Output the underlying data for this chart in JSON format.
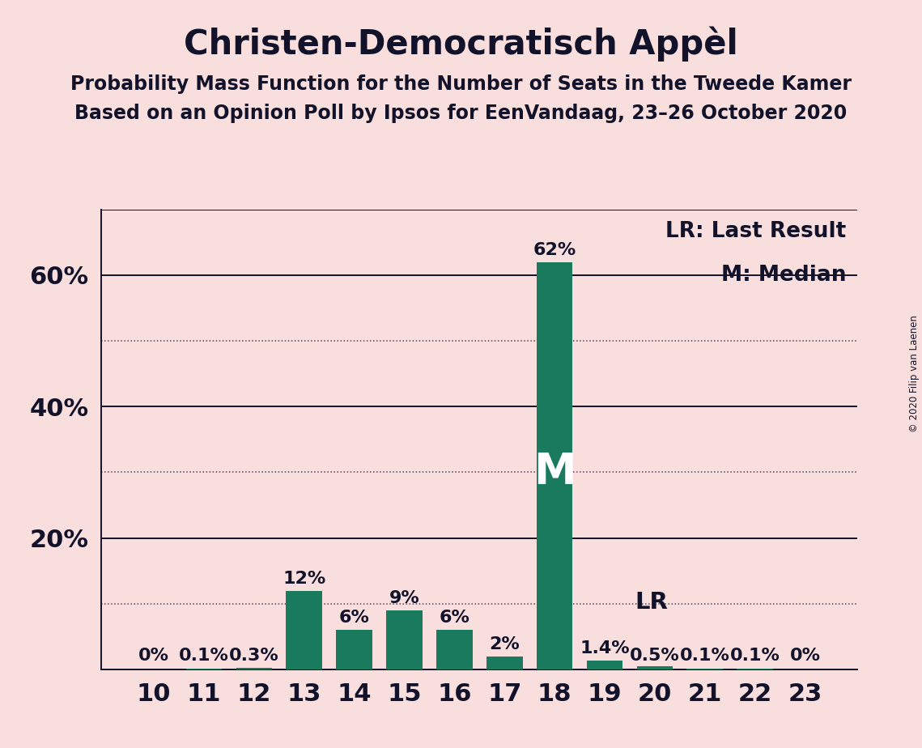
{
  "title": "Christen-Democratisch Appèl",
  "subtitle1": "Probability Mass Function for the Number of Seats in the Tweede Kamer",
  "subtitle2": "Based on an Opinion Poll by Ipsos for EenVandaag, 23–26 October 2020",
  "copyright": "© 2020 Filip van Laenen",
  "categories": [
    10,
    11,
    12,
    13,
    14,
    15,
    16,
    17,
    18,
    19,
    20,
    21,
    22,
    23
  ],
  "values": [
    0.0,
    0.1,
    0.3,
    12.0,
    6.0,
    9.0,
    6.0,
    2.0,
    62.0,
    1.4,
    0.5,
    0.1,
    0.1,
    0.0
  ],
  "labels": [
    "0%",
    "0.1%",
    "0.3%",
    "12%",
    "6%",
    "9%",
    "6%",
    "2%",
    "62%",
    "1.4%",
    "0.5%",
    "0.1%",
    "0.1%",
    "0%"
  ],
  "bar_color": "#1a7a5e",
  "background_color": "#f9dede",
  "text_color": "#12122a",
  "median_seat": 18,
  "lr_seat": 19,
  "lr_label": "LR",
  "median_label": "M",
  "legend_lr": "LR: Last Result",
  "legend_m": "M: Median",
  "ylim": [
    0,
    70
  ],
  "solid_lines": [
    20,
    40,
    60,
    70
  ],
  "dotted_lines": [
    10,
    30,
    50
  ],
  "title_fontsize": 30,
  "subtitle_fontsize": 17,
  "axis_fontsize": 22,
  "bar_label_fontsize": 16,
  "legend_fontsize": 19,
  "median_label_fontsize": 38,
  "lr_label_fontsize": 21
}
